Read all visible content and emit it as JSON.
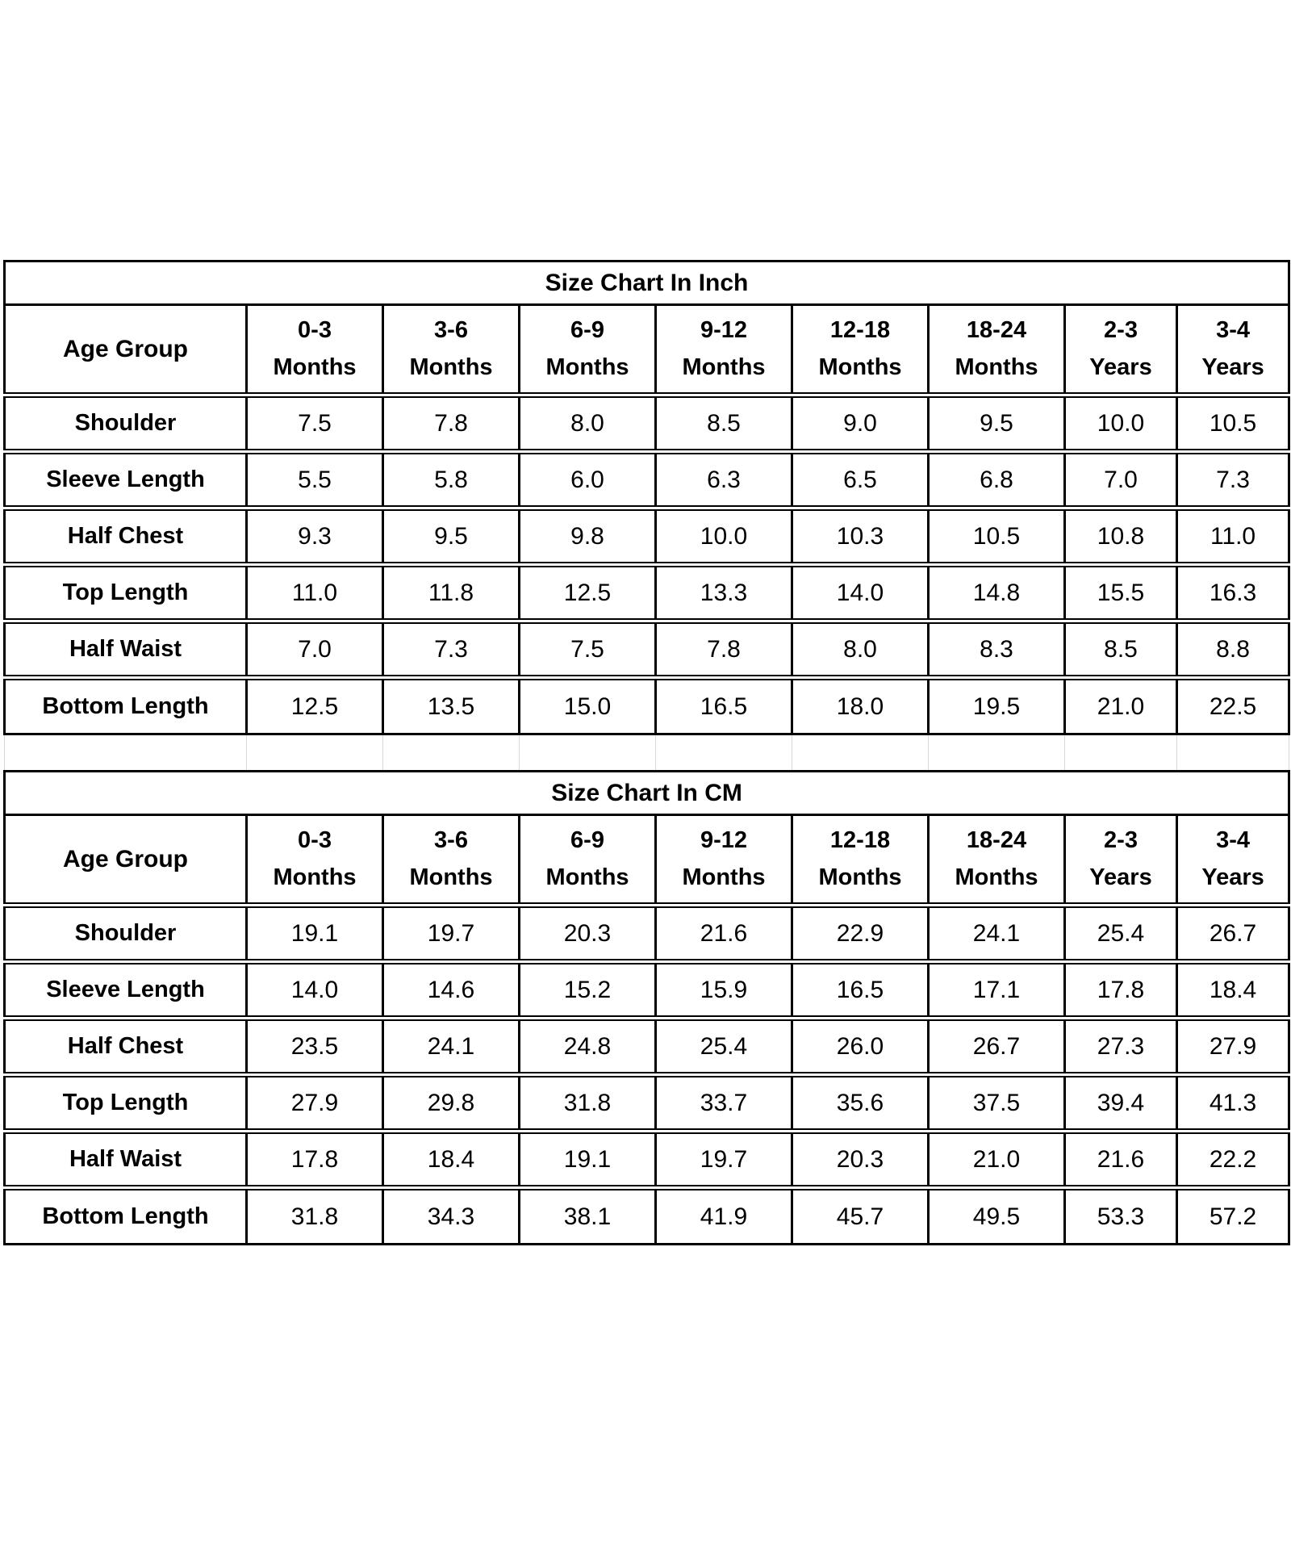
{
  "chart_data": [
    {
      "type": "table",
      "title": "Size Chart In Inch",
      "header_label": "Age Group",
      "columns": [
        {
          "range": "0-3",
          "unit": "Months"
        },
        {
          "range": "3-6",
          "unit": "Months"
        },
        {
          "range": "6-9",
          "unit": "Months"
        },
        {
          "range": "9-12",
          "unit": "Months"
        },
        {
          "range": "12-18",
          "unit": "Months"
        },
        {
          "range": "18-24",
          "unit": "Months"
        },
        {
          "range": "2-3",
          "unit": "Years"
        },
        {
          "range": "3-4",
          "unit": "Years"
        }
      ],
      "rows": [
        {
          "label": "Shoulder",
          "values": [
            "7.5",
            "7.8",
            "8.0",
            "8.5",
            "9.0",
            "9.5",
            "10.0",
            "10.5"
          ]
        },
        {
          "label": "Sleeve Length",
          "values": [
            "5.5",
            "5.8",
            "6.0",
            "6.3",
            "6.5",
            "6.8",
            "7.0",
            "7.3"
          ]
        },
        {
          "label": "Half Chest",
          "values": [
            "9.3",
            "9.5",
            "9.8",
            "10.0",
            "10.3",
            "10.5",
            "10.8",
            "11.0"
          ]
        },
        {
          "label": "Top Length",
          "values": [
            "11.0",
            "11.8",
            "12.5",
            "13.3",
            "14.0",
            "14.8",
            "15.5",
            "16.3"
          ]
        },
        {
          "label": "Half Waist",
          "values": [
            "7.0",
            "7.3",
            "7.5",
            "7.8",
            "8.0",
            "8.3",
            "8.5",
            "8.8"
          ]
        },
        {
          "label": "Bottom Length",
          "values": [
            "12.5",
            "13.5",
            "15.0",
            "16.5",
            "18.0",
            "19.5",
            "21.0",
            "22.5"
          ]
        }
      ]
    },
    {
      "type": "table",
      "title": "Size Chart In CM",
      "header_label": "Age Group",
      "columns": [
        {
          "range": "0-3",
          "unit": "Months"
        },
        {
          "range": "3-6",
          "unit": "Months"
        },
        {
          "range": "6-9",
          "unit": "Months"
        },
        {
          "range": "9-12",
          "unit": "Months"
        },
        {
          "range": "12-18",
          "unit": "Months"
        },
        {
          "range": "18-24",
          "unit": "Months"
        },
        {
          "range": "2-3",
          "unit": "Years"
        },
        {
          "range": "3-4",
          "unit": "Years"
        }
      ],
      "rows": [
        {
          "label": "Shoulder",
          "values": [
            "19.1",
            "19.7",
            "20.3",
            "21.6",
            "22.9",
            "24.1",
            "25.4",
            "26.7"
          ]
        },
        {
          "label": "Sleeve Length",
          "values": [
            "14.0",
            "14.6",
            "15.2",
            "15.9",
            "16.5",
            "17.1",
            "17.8",
            "18.4"
          ]
        },
        {
          "label": "Half Chest",
          "values": [
            "23.5",
            "24.1",
            "24.8",
            "25.4",
            "26.0",
            "26.7",
            "27.3",
            "27.9"
          ]
        },
        {
          "label": "Top Length",
          "values": [
            "27.9",
            "29.8",
            "31.8",
            "33.7",
            "35.6",
            "37.5",
            "39.4",
            "41.3"
          ]
        },
        {
          "label": "Half Waist",
          "values": [
            "17.8",
            "18.4",
            "19.1",
            "19.7",
            "20.3",
            "21.0",
            "21.6",
            "22.2"
          ]
        },
        {
          "label": "Bottom Length",
          "values": [
            "31.8",
            "34.3",
            "38.1",
            "41.9",
            "45.7",
            "49.5",
            "53.3",
            "57.2"
          ]
        }
      ]
    }
  ],
  "colors": {
    "border": "#000000",
    "spacer_border": "#d9d9d9",
    "background": "#ffffff",
    "text": "#000000"
  }
}
